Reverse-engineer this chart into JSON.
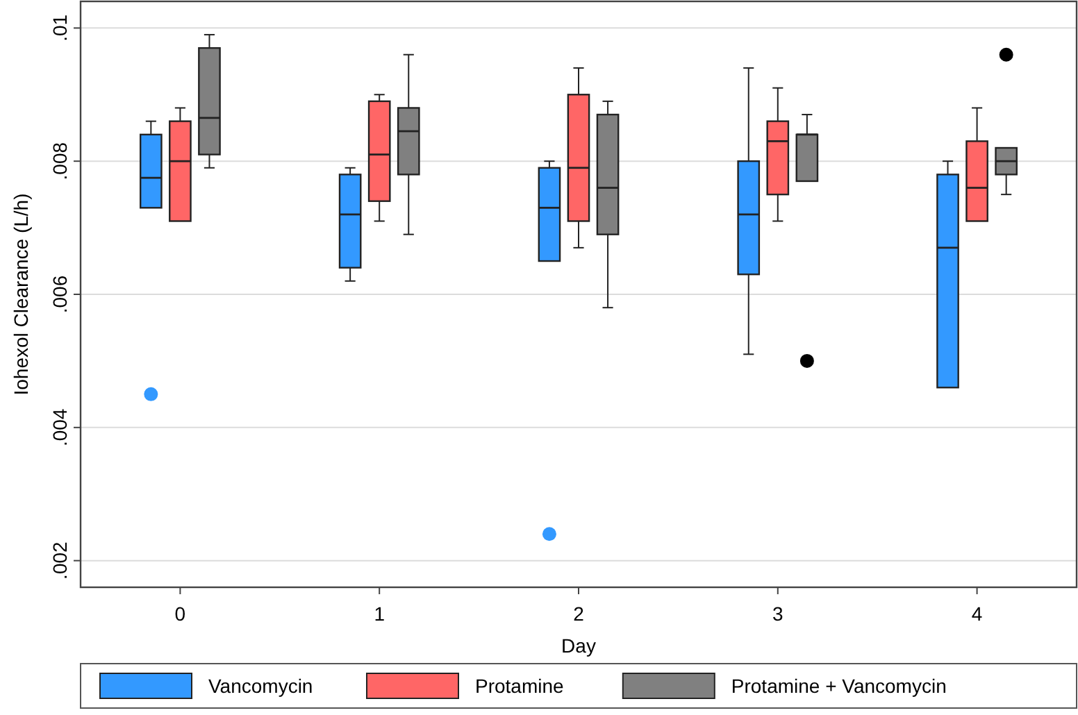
{
  "chart_data": {
    "type": "box",
    "xlabel": "Day",
    "ylabel": "Iohexol Clearance (L/h)",
    "categories": [
      "0",
      "1",
      "2",
      "3",
      "4"
    ],
    "ylim": [
      0.0016,
      0.0104
    ],
    "yticks": [
      {
        "value": 0.002,
        "label": ".002"
      },
      {
        "value": 0.004,
        "label": ".004"
      },
      {
        "value": 0.006,
        "label": ".006"
      },
      {
        "value": 0.008,
        "label": ".008"
      },
      {
        "value": 0.01,
        "label": ".01"
      }
    ],
    "grid": "y",
    "legend": "bottom",
    "series": [
      {
        "name": "Vancomycin",
        "color": "#3399ff",
        "boxes": [
          {
            "low": 0.0073,
            "q1": 0.0073,
            "median": 0.00775,
            "q3": 0.0084,
            "high": 0.0086,
            "outliers": [
              0.0045
            ]
          },
          {
            "low": 0.0062,
            "q1": 0.0064,
            "median": 0.0072,
            "q3": 0.0078,
            "high": 0.0079
          },
          {
            "low": 0.0065,
            "q1": 0.0065,
            "median": 0.0073,
            "q3": 0.0079,
            "high": 0.008,
            "outliers": [
              0.0024
            ]
          },
          {
            "low": 0.0051,
            "q1": 0.0063,
            "median": 0.0072,
            "q3": 0.008,
            "high": 0.0094
          },
          {
            "low": 0.0046,
            "q1": 0.0046,
            "median": 0.0067,
            "q3": 0.0078,
            "high": 0.008
          }
        ]
      },
      {
        "name": "Protamine",
        "color": "#ff6666",
        "boxes": [
          {
            "low": 0.0071,
            "q1": 0.0071,
            "median": 0.008,
            "q3": 0.0086,
            "high": 0.0088
          },
          {
            "low": 0.0071,
            "q1": 0.0074,
            "median": 0.0081,
            "q3": 0.0089,
            "high": 0.009
          },
          {
            "low": 0.0067,
            "q1": 0.0071,
            "median": 0.0079,
            "q3": 0.009,
            "high": 0.0094
          },
          {
            "low": 0.0071,
            "q1": 0.0075,
            "median": 0.0083,
            "q3": 0.0086,
            "high": 0.0091
          },
          {
            "low": 0.0071,
            "q1": 0.0071,
            "median": 0.0076,
            "q3": 0.0083,
            "high": 0.0088
          }
        ]
      },
      {
        "name": "Protamine + Vancomycin",
        "color": "#808080",
        "boxes": [
          {
            "low": 0.0079,
            "q1": 0.0081,
            "median": 0.00865,
            "q3": 0.0097,
            "high": 0.0099
          },
          {
            "low": 0.0069,
            "q1": 0.0078,
            "median": 0.00845,
            "q3": 0.0088,
            "high": 0.0096
          },
          {
            "low": 0.0058,
            "q1": 0.0069,
            "median": 0.0076,
            "q3": 0.0087,
            "high": 0.0089
          },
          {
            "low": 0.0077,
            "q1": 0.0077,
            "median": 0.0084,
            "q3": 0.0084,
            "high": 0.0087,
            "outliers": [
              0.005
            ]
          },
          {
            "low": 0.0075,
            "q1": 0.0078,
            "median": 0.008,
            "q3": 0.0082,
            "high": 0.0082,
            "outliers": [
              0.0096
            ]
          }
        ]
      }
    ]
  }
}
